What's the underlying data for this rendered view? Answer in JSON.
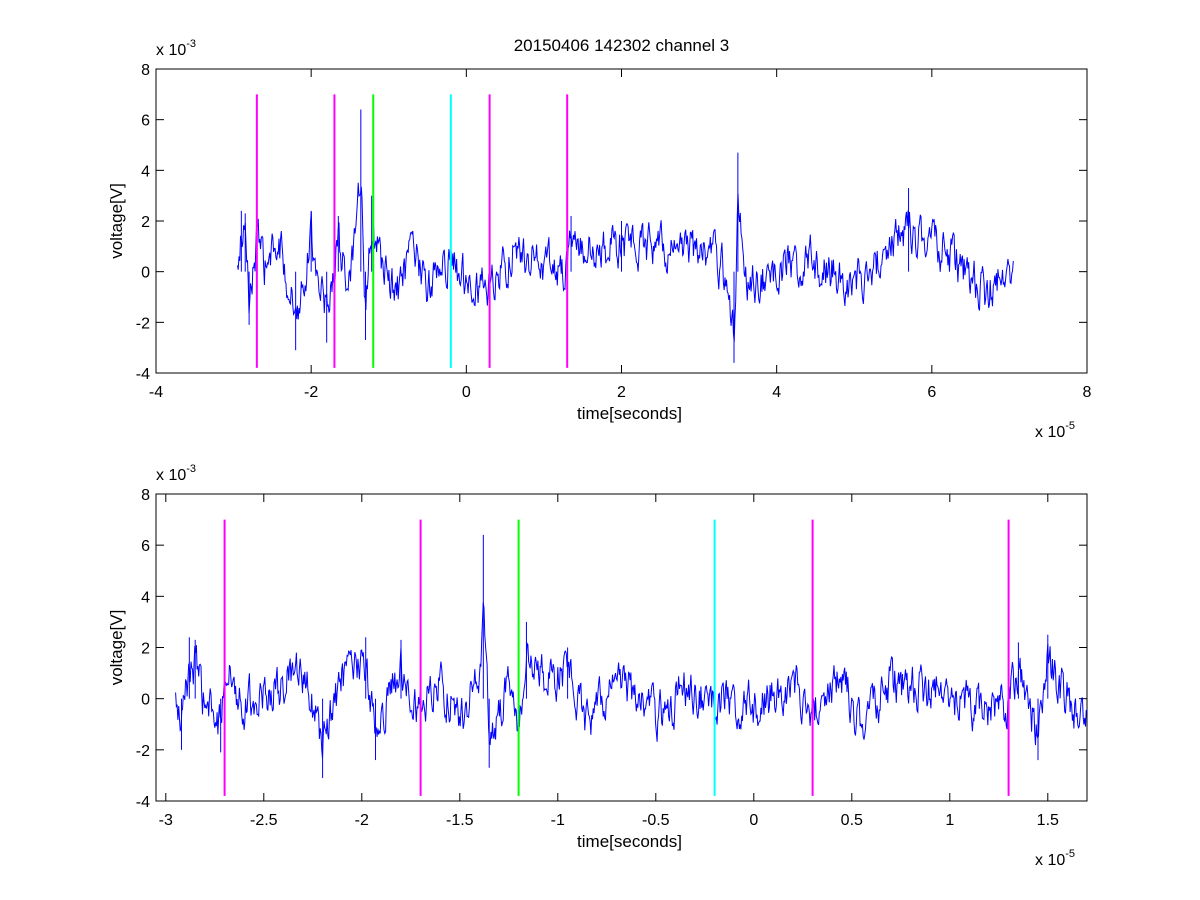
{
  "chart_data": [
    {
      "type": "line",
      "title": "20150406 142302 channel 3",
      "xlabel": "time[seconds]",
      "ylabel": "voltage[V]",
      "x_exponent_label": {
        "base": "x 10",
        "power": "-5"
      },
      "y_exponent_label": {
        "base": "x 10",
        "power": "-3"
      },
      "xlim": [
        -4,
        8
      ],
      "ylim": [
        -4,
        8
      ],
      "x_scale_note": "x values in units of 1e-5 s, y values in units of 1e-3 V",
      "x_ticks": [
        -4,
        -2,
        0,
        2,
        4,
        6,
        8
      ],
      "x_tick_labels": [
        "-4",
        "-2",
        "0",
        "2",
        "4",
        "6",
        "8"
      ],
      "y_ticks": [
        -4,
        -2,
        0,
        2,
        4,
        6,
        8
      ],
      "y_tick_labels": [
        "-4",
        "-2",
        "0",
        "2",
        "4",
        "6",
        "8"
      ],
      "grid": false,
      "series": [
        {
          "color": "#0000ff",
          "x_range": [
            -2.95,
            7.05
          ],
          "keypoints": [
            [
              -2.95,
              -0.3
            ],
            [
              -2.9,
              2.4
            ],
            [
              -2.85,
              2.3
            ],
            [
              -2.8,
              -2.1
            ],
            [
              -2.7,
              2.3
            ],
            [
              -2.6,
              0.3
            ],
            [
              -2.4,
              1.7
            ],
            [
              -2.2,
              -3.1
            ],
            [
              -2.0,
              2.4
            ],
            [
              -1.8,
              -2.8
            ],
            [
              -1.65,
              2.2
            ],
            [
              -1.5,
              -1.2
            ],
            [
              -1.36,
              6.4
            ],
            [
              -1.3,
              -2.7
            ],
            [
              -1.22,
              3.0
            ],
            [
              -1.1,
              0.8
            ],
            [
              -0.9,
              -1.8
            ],
            [
              -0.7,
              1.3
            ],
            [
              -0.5,
              -1.2
            ],
            [
              -0.3,
              0.8
            ],
            [
              0.3,
              -1.2
            ],
            [
              0.6,
              1.4
            ],
            [
              1.3,
              0.2
            ],
            [
              1.35,
              2.2
            ],
            [
              1.7,
              1.1
            ],
            [
              2.0,
              2.0
            ],
            [
              2.6,
              1.6
            ],
            [
              3.0,
              1.6
            ],
            [
              3.3,
              0.4
            ],
            [
              3.45,
              -3.6
            ],
            [
              3.5,
              4.7
            ],
            [
              3.6,
              -0.8
            ],
            [
              4.4,
              1.0
            ],
            [
              5.0,
              -1.0
            ],
            [
              5.7,
              3.3
            ],
            [
              6.3,
              0.8
            ],
            [
              6.7,
              -1.5
            ],
            [
              7.05,
              0.2
            ]
          ]
        }
      ],
      "vertical_markers": [
        {
          "x": -2.7,
          "color": "#ff00ff",
          "y_range": [
            -3.8,
            7.0
          ]
        },
        {
          "x": -1.7,
          "color": "#ff00ff",
          "y_range": [
            -3.8,
            7.0
          ]
        },
        {
          "x": -1.2,
          "color": "#00ff00",
          "y_range": [
            -3.8,
            7.0
          ]
        },
        {
          "x": -0.2,
          "color": "#00ffff",
          "y_range": [
            -3.8,
            7.0
          ]
        },
        {
          "x": 0.3,
          "color": "#ff00ff",
          "y_range": [
            -3.8,
            7.0
          ]
        },
        {
          "x": 1.3,
          "color": "#ff00ff",
          "y_range": [
            -3.8,
            7.0
          ]
        }
      ]
    },
    {
      "type": "line",
      "title": "",
      "xlabel": "time[seconds]",
      "ylabel": "voltage[V]",
      "x_exponent_label": {
        "base": "x 10",
        "power": "-5"
      },
      "y_exponent_label": {
        "base": "x 10",
        "power": "-3"
      },
      "xlim": [
        -3.05,
        1.7
      ],
      "ylim": [
        -4,
        8
      ],
      "x_scale_note": "x values in units of 1e-5 s, y values in units of 1e-3 V",
      "x_ticks": [
        -3,
        -2.5,
        -2,
        -1.5,
        -1,
        -0.5,
        0,
        0.5,
        1,
        1.5
      ],
      "x_tick_labels": [
        "-3",
        "-2.5",
        "-2",
        "-1.5",
        "-1",
        "-0.5",
        "0",
        "0.5",
        "1",
        "1.5"
      ],
      "y_ticks": [
        -4,
        -2,
        0,
        2,
        4,
        6,
        8
      ],
      "y_tick_labels": [
        "-4",
        "-2",
        "0",
        "2",
        "4",
        "6",
        "8"
      ],
      "grid": false,
      "series": [
        {
          "color": "#0000ff",
          "x_range": [
            -2.95,
            1.7
          ],
          "keypoints": [
            [
              -2.95,
              -0.3
            ],
            [
              -2.92,
              -2.0
            ],
            [
              -2.88,
              2.4
            ],
            [
              -2.85,
              2.3
            ],
            [
              -2.8,
              -0.5
            ],
            [
              -2.72,
              -2.1
            ],
            [
              -2.7,
              2.4
            ],
            [
              -2.6,
              -0.3
            ],
            [
              -2.45,
              0.6
            ],
            [
              -2.3,
              1.7
            ],
            [
              -2.2,
              -3.1
            ],
            [
              -2.1,
              1.3
            ],
            [
              -1.98,
              2.4
            ],
            [
              -1.93,
              -2.4
            ],
            [
              -1.8,
              2.3
            ],
            [
              -1.7,
              -0.8
            ],
            [
              -1.6,
              1.2
            ],
            [
              -1.5,
              -1.5
            ],
            [
              -1.4,
              1.8
            ],
            [
              -1.38,
              6.4
            ],
            [
              -1.35,
              -2.7
            ],
            [
              -1.25,
              1.0
            ],
            [
              -1.2,
              -2.0
            ],
            [
              -1.16,
              3.0
            ],
            [
              -1.05,
              1.0
            ],
            [
              -0.95,
              2.0
            ],
            [
              -0.85,
              -1.8
            ],
            [
              -0.7,
              1.5
            ],
            [
              -0.5,
              -1.3
            ],
            [
              -0.35,
              0.8
            ],
            [
              -0.2,
              0.0
            ],
            [
              0.0,
              -0.5
            ],
            [
              0.2,
              1.0
            ],
            [
              0.3,
              -0.8
            ],
            [
              0.45,
              1.5
            ],
            [
              0.55,
              -1.8
            ],
            [
              0.7,
              1.1
            ],
            [
              0.95,
              0.6
            ],
            [
              1.2,
              -1.0
            ],
            [
              1.3,
              -0.3
            ],
            [
              1.35,
              2.2
            ],
            [
              1.45,
              -2.4
            ],
            [
              1.5,
              2.5
            ],
            [
              1.62,
              -0.5
            ],
            [
              1.7,
              -0.8
            ]
          ]
        }
      ],
      "vertical_markers": [
        {
          "x": -2.7,
          "color": "#ff00ff",
          "y_range": [
            -3.8,
            7.0
          ]
        },
        {
          "x": -1.7,
          "color": "#ff00ff",
          "y_range": [
            -3.8,
            7.0
          ]
        },
        {
          "x": -1.2,
          "color": "#00ff00",
          "y_range": [
            -3.8,
            7.0
          ]
        },
        {
          "x": -0.2,
          "color": "#00ffff",
          "y_range": [
            -3.8,
            7.0
          ]
        },
        {
          "x": 0.3,
          "color": "#ff00ff",
          "y_range": [
            -3.8,
            7.0
          ]
        },
        {
          "x": 1.3,
          "color": "#ff00ff",
          "y_range": [
            -3.8,
            7.0
          ]
        }
      ]
    }
  ]
}
